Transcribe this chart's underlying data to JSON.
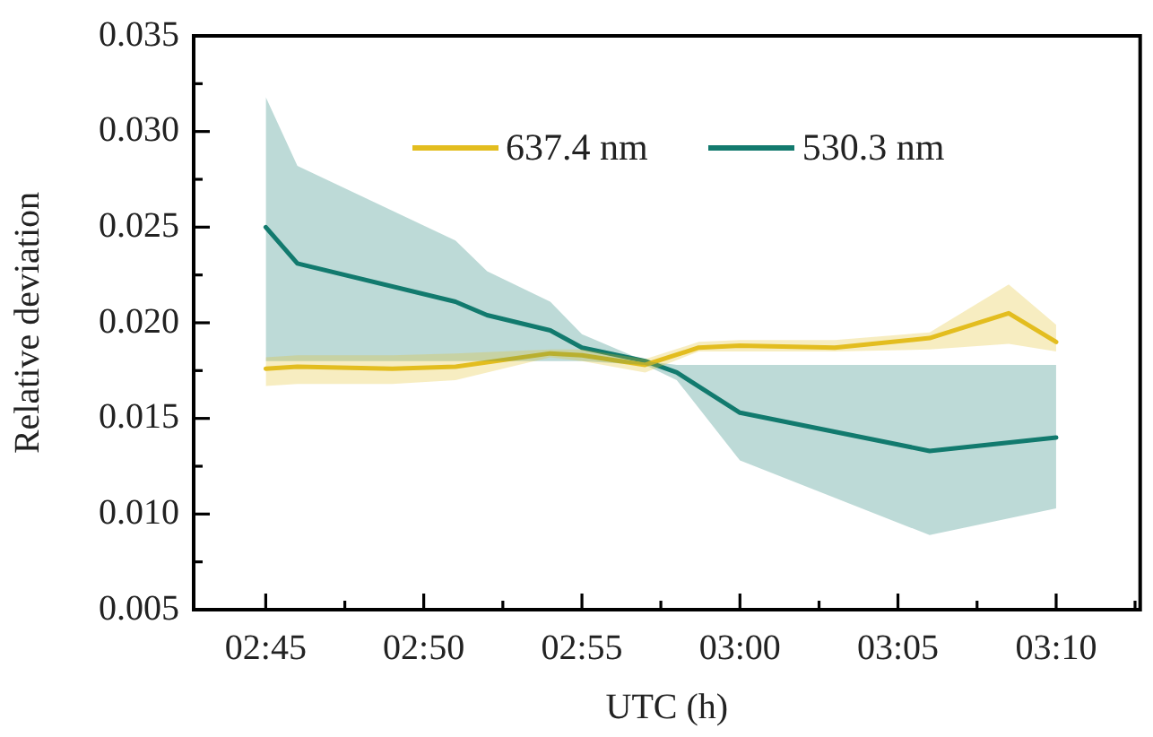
{
  "chart_data": {
    "type": "line",
    "xlabel": "UTC (h)",
    "ylabel": "Relative deviation",
    "xlim": [
      2.712,
      3.211
    ],
    "ylim": [
      0.005,
      0.035
    ],
    "xticks": [
      {
        "value": 2.75,
        "label": "02:45"
      },
      {
        "value": 2.7917,
        "label": null
      },
      {
        "value": 2.8333,
        "label": "02:50"
      },
      {
        "value": 2.875,
        "label": null
      },
      {
        "value": 2.9167,
        "label": "02:55"
      },
      {
        "value": 2.9583,
        "label": null
      },
      {
        "value": 3.0,
        "label": "03:00"
      },
      {
        "value": 3.0417,
        "label": null
      },
      {
        "value": 3.0833,
        "label": "03:05"
      },
      {
        "value": 3.125,
        "label": null
      },
      {
        "value": 3.1667,
        "label": "03:10"
      },
      {
        "value": 3.2083,
        "label": null
      }
    ],
    "yticks": [
      {
        "value": 0.005,
        "label": "0.005"
      },
      {
        "value": 0.0075,
        "label": null
      },
      {
        "value": 0.01,
        "label": "0.010"
      },
      {
        "value": 0.0125,
        "label": null
      },
      {
        "value": 0.015,
        "label": "0.015"
      },
      {
        "value": 0.0175,
        "label": null
      },
      {
        "value": 0.02,
        "label": "0.020"
      },
      {
        "value": 0.0225,
        "label": null
      },
      {
        "value": 0.025,
        "label": "0.025"
      },
      {
        "value": 0.0275,
        "label": null
      },
      {
        "value": 0.03,
        "label": "0.030"
      },
      {
        "value": 0.0325,
        "label": null
      },
      {
        "value": 0.035,
        "label": "0.035"
      }
    ],
    "grid": false,
    "legend": "top right",
    "marker": "none",
    "line_style": "solid",
    "series": [
      {
        "name": "637.4 nm",
        "color": "#e3bd1f",
        "x": [
          2.75,
          2.7667,
          2.8167,
          2.85,
          2.9,
          2.9167,
          2.95,
          2.9783,
          3.0,
          3.05,
          3.1,
          3.1417,
          3.1667
        ],
        "values": [
          0.0176,
          0.0177,
          0.0176,
          0.0177,
          0.0184,
          0.0183,
          0.0178,
          0.0187,
          0.0188,
          0.0187,
          0.0192,
          0.0205,
          0.019
        ],
        "upper": [
          0.0182,
          0.0183,
          0.0183,
          0.0184,
          0.0186,
          0.0186,
          0.0181,
          0.019,
          0.0191,
          0.0191,
          0.0195,
          0.022,
          0.0199
        ],
        "lower": [
          0.0167,
          0.0168,
          0.0168,
          0.017,
          0.0182,
          0.018,
          0.0174,
          0.0185,
          0.0185,
          0.0185,
          0.0186,
          0.0189,
          0.0185
        ]
      },
      {
        "name": "530.3 nm",
        "color": "#137a6e",
        "x": [
          2.75,
          2.7667,
          2.85,
          2.8667,
          2.9,
          2.9167,
          2.95,
          2.9667,
          3.0,
          3.1,
          3.1667
        ],
        "values": [
          0.025,
          0.0231,
          0.0211,
          0.0204,
          0.0196,
          0.0187,
          0.018,
          0.0174,
          0.0153,
          0.0133,
          0.014
        ],
        "upper": [
          0.0318,
          0.0282,
          0.0243,
          0.0227,
          0.0211,
          0.0194,
          0.018,
          0.0178,
          0.0178,
          0.0178,
          0.0178
        ],
        "lower": [
          0.018,
          0.018,
          0.018,
          0.018,
          0.018,
          0.018,
          0.0178,
          0.017,
          0.0128,
          0.0089,
          0.0103
        ]
      }
    ]
  }
}
